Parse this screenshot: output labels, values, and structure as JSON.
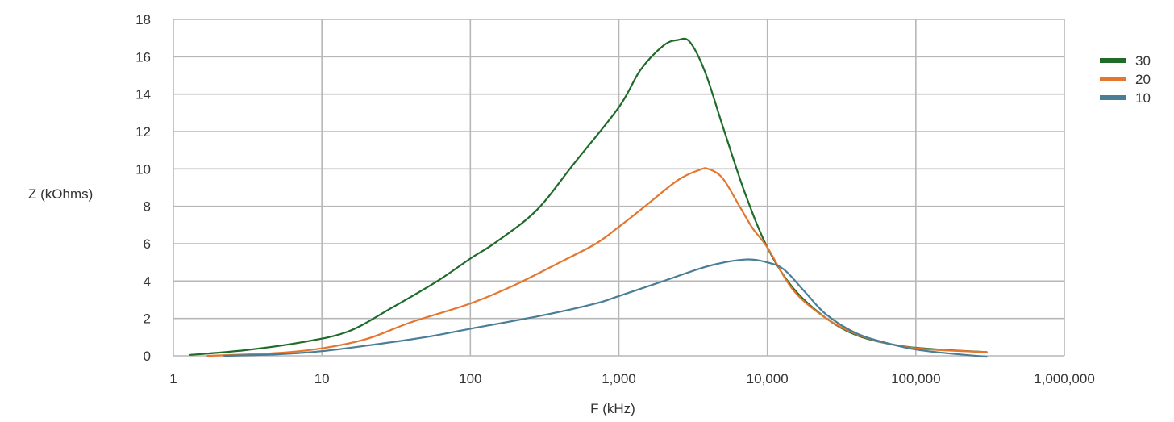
{
  "chart_data": {
    "type": "line",
    "x_scale": "log",
    "xlabel": "F (kHz)",
    "ylabel": "Z (kOhms)",
    "xlim": [
      1,
      1000000
    ],
    "ylim": [
      0,
      18
    ],
    "x_ticks": [
      {
        "value": 1,
        "label": "1"
      },
      {
        "value": 10,
        "label": "10"
      },
      {
        "value": 100,
        "label": "100"
      },
      {
        "value": 1000,
        "label": "1,000"
      },
      {
        "value": 10000,
        "label": "10,000"
      },
      {
        "value": 100000,
        "label": "100,000"
      },
      {
        "value": 1000000,
        "label": "1,000,000"
      }
    ],
    "y_ticks": [
      {
        "value": 0,
        "label": "0"
      },
      {
        "value": 2,
        "label": "2"
      },
      {
        "value": 4,
        "label": "4"
      },
      {
        "value": 6,
        "label": "6"
      },
      {
        "value": 8,
        "label": "8"
      },
      {
        "value": 10,
        "label": "10"
      },
      {
        "value": 12,
        "label": "12"
      },
      {
        "value": 14,
        "label": "14"
      },
      {
        "value": 16,
        "label": "16"
      },
      {
        "value": 18,
        "label": "18"
      }
    ],
    "grid": true,
    "legend_position": "right",
    "series": [
      {
        "name": "30",
        "color": "#1f6b2a",
        "points": [
          [
            1.3,
            0.05
          ],
          [
            3,
            0.3
          ],
          [
            7,
            0.7
          ],
          [
            15,
            1.3
          ],
          [
            30,
            2.6
          ],
          [
            60,
            4.0
          ],
          [
            100,
            5.2
          ],
          [
            150,
            6.1
          ],
          [
            280,
            7.8
          ],
          [
            500,
            10.3
          ],
          [
            1000,
            13.3
          ],
          [
            1400,
            15.3
          ],
          [
            2000,
            16.6
          ],
          [
            2500,
            16.9
          ],
          [
            3000,
            16.8
          ],
          [
            3800,
            15.2
          ],
          [
            5000,
            12.3
          ],
          [
            7000,
            8.8
          ],
          [
            10000,
            5.8
          ],
          [
            15000,
            3.6
          ],
          [
            25000,
            2.0
          ],
          [
            40000,
            1.1
          ],
          [
            70000,
            0.6
          ],
          [
            120000,
            0.38
          ],
          [
            300000,
            0.2
          ]
        ]
      },
      {
        "name": "20",
        "color": "#e4762f",
        "points": [
          [
            1.7,
            0.0
          ],
          [
            5,
            0.15
          ],
          [
            10,
            0.4
          ],
          [
            20,
            0.9
          ],
          [
            40,
            1.8
          ],
          [
            100,
            2.8
          ],
          [
            200,
            3.8
          ],
          [
            400,
            5.0
          ],
          [
            700,
            6.0
          ],
          [
            1000,
            6.9
          ],
          [
            1500,
            8.0
          ],
          [
            2500,
            9.4
          ],
          [
            3500,
            9.95
          ],
          [
            4000,
            10.0
          ],
          [
            5000,
            9.5
          ],
          [
            6500,
            8.0
          ],
          [
            8000,
            6.8
          ],
          [
            10000,
            5.8
          ],
          [
            15000,
            3.5
          ],
          [
            25000,
            2.0
          ],
          [
            40000,
            1.15
          ],
          [
            70000,
            0.6
          ],
          [
            120000,
            0.35
          ],
          [
            300000,
            0.2
          ]
        ]
      },
      {
        "name": "10",
        "color": "#4a7d98",
        "points": [
          [
            2.2,
            0.0
          ],
          [
            5,
            0.08
          ],
          [
            10,
            0.25
          ],
          [
            20,
            0.55
          ],
          [
            50,
            1.0
          ],
          [
            100,
            1.45
          ],
          [
            300,
            2.15
          ],
          [
            700,
            2.8
          ],
          [
            1000,
            3.2
          ],
          [
            2000,
            4.0
          ],
          [
            4000,
            4.8
          ],
          [
            7000,
            5.15
          ],
          [
            10000,
            5.0
          ],
          [
            13000,
            4.6
          ],
          [
            18000,
            3.4
          ],
          [
            25000,
            2.2
          ],
          [
            40000,
            1.2
          ],
          [
            70000,
            0.6
          ],
          [
            120000,
            0.25
          ],
          [
            300000,
            -0.05
          ]
        ]
      }
    ]
  }
}
